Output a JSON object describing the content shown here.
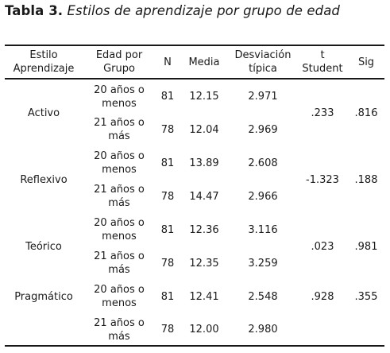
{
  "caption": {
    "label": "Tabla 3.",
    "title": "Estilos de aprendizaje por grupo de edad"
  },
  "header": {
    "estilo": [
      "Estilo",
      "Aprendizaje"
    ],
    "edad": [
      "Edad por",
      "Grupo"
    ],
    "n": "N",
    "media": "Media",
    "desviacion": [
      "Desviación",
      "típica"
    ],
    "t": [
      "t",
      "Student"
    ],
    "sig": "Sig"
  },
  "groups": [
    {
      "estilo": "Activo",
      "t": ".233",
      "sig": ".816",
      "rows": [
        {
          "edad": [
            "20 años o",
            "menos"
          ],
          "n": "81",
          "media": "12.15",
          "desviacion": "2.971"
        },
        {
          "edad": [
            "21 años o",
            "más"
          ],
          "n": "78",
          "media": "12.04",
          "desviacion": "2.969"
        }
      ]
    },
    {
      "estilo": "Reflexivo",
      "t": "-1.323",
      "sig": ".188",
      "rows": [
        {
          "edad": [
            "20 años o",
            "menos"
          ],
          "n": "81",
          "media": "13.89",
          "desviacion": "2.608"
        },
        {
          "edad": [
            "21 años o",
            "más"
          ],
          "n": "78",
          "media": "14.47",
          "desviacion": "2.966"
        }
      ]
    },
    {
      "estilo": "Teórico",
      "t": ".023",
      "sig": ".981",
      "rows": [
        {
          "edad": [
            "20 años o",
            "menos"
          ],
          "n": "81",
          "media": "12.36",
          "desviacion": "3.116"
        },
        {
          "edad": [
            "21 años o",
            "más"
          ],
          "n": "78",
          "media": "12.35",
          "desviacion": "3.259"
        }
      ]
    },
    {
      "estilo": "Pragmático",
      "t": ".928",
      "sig": ".355",
      "rows": [
        {
          "edad": [
            "20 años o",
            "menos"
          ],
          "n": "81",
          "media": "12.41",
          "desviacion": "2.548"
        },
        {
          "edad": [
            "21 años o",
            "más"
          ],
          "n": "78",
          "media": "12.00",
          "desviacion": "2.980"
        }
      ]
    }
  ]
}
